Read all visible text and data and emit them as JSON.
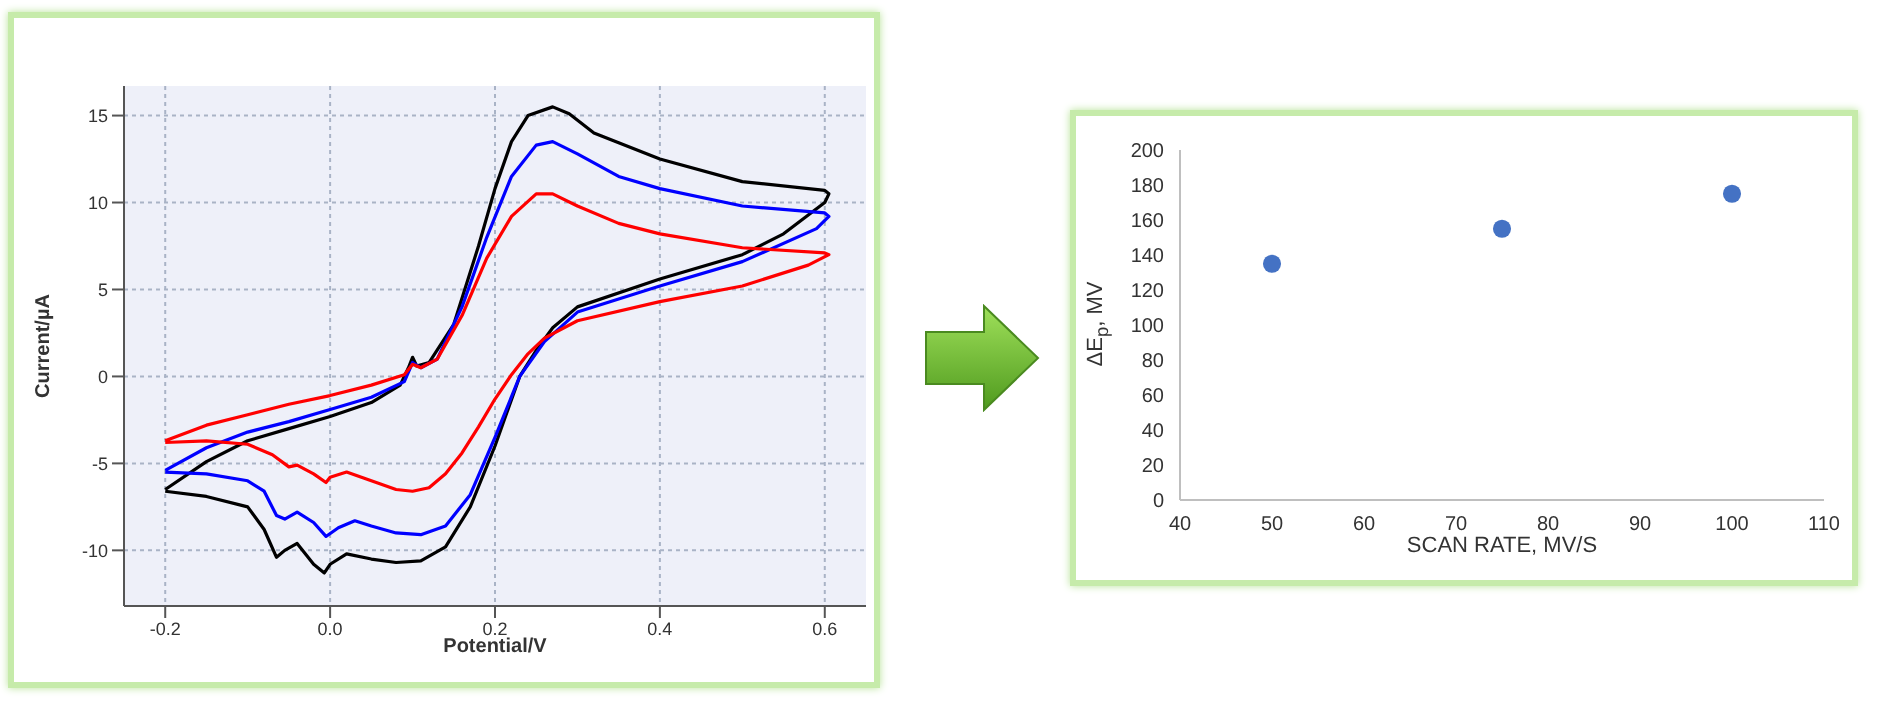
{
  "chart_data": [
    {
      "type": "line",
      "xlabel": "Potential/V",
      "ylabel": "Current/µA",
      "xlim": [
        -0.25,
        0.65
      ],
      "ylim": [
        -13.2,
        16.7
      ],
      "xticks": [
        -0.2,
        {
          "value": 0,
          "label": "0.0"
        },
        0.2,
        0.4,
        0.6
      ],
      "yticks": [
        -10,
        -5,
        0,
        5,
        10,
        15
      ],
      "grid": true,
      "marker": "none",
      "line_style": "solid",
      "series": [
        {
          "color": "#000000",
          "x": [
            -0.2,
            -0.15,
            -0.1,
            -0.05,
            0,
            0.05,
            0.085,
            0.095,
            0.1,
            0.105,
            0.12,
            0.15,
            0.18,
            0.2,
            0.22,
            0.24,
            0.27,
            0.29,
            0.32,
            0.4,
            0.5,
            0.6,
            0.605,
            0.6,
            0.55,
            0.5,
            0.4,
            0.3,
            0.27,
            0.25,
            0.23,
            0.2,
            0.17,
            0.14,
            0.11,
            0.08,
            0.05,
            0.02,
            0,
            -0.007,
            -0.02,
            -0.04,
            -0.055,
            -0.065,
            -0.08,
            -0.1,
            -0.15,
            -0.2
          ],
          "values": [
            -6.5,
            -4.9,
            -3.7,
            -3,
            -2.3,
            -1.5,
            -0.5,
            0.5,
            1.1,
            0.6,
            0.8,
            3,
            7.5,
            10.8,
            13.5,
            15,
            15.5,
            15.1,
            14,
            12.5,
            11.2,
            10.7,
            10.5,
            10,
            8.2,
            7,
            5.6,
            4,
            2.8,
            1.5,
            0,
            -4,
            -7.5,
            -9.8,
            -10.6,
            -10.7,
            -10.5,
            -10.2,
            -10.8,
            -11.3,
            -10.8,
            -9.6,
            -10,
            -10.4,
            -8.8,
            -7.5,
            -6.9,
            -6.6
          ]
        },
        {
          "color": "#0000ff",
          "x": [
            -0.2,
            -0.15,
            -0.1,
            -0.05,
            0,
            0.05,
            0.09,
            0.1,
            0.11,
            0.13,
            0.16,
            0.19,
            0.22,
            0.25,
            0.27,
            0.3,
            0.35,
            0.4,
            0.5,
            0.6,
            0.605,
            0.59,
            0.5,
            0.4,
            0.3,
            0.26,
            0.23,
            0.2,
            0.17,
            0.14,
            0.11,
            0.08,
            0.05,
            0.03,
            0.01,
            -0.005,
            -0.02,
            -0.04,
            -0.055,
            -0.065,
            -0.08,
            -0.1,
            -0.15,
            -0.2
          ],
          "values": [
            -5.4,
            -4.1,
            -3.2,
            -2.6,
            -1.9,
            -1.2,
            -0.3,
            0.8,
            0.5,
            1,
            4,
            8,
            11.5,
            13.3,
            13.5,
            12.8,
            11.5,
            10.8,
            9.8,
            9.4,
            9.2,
            8.5,
            6.6,
            5.2,
            3.7,
            2,
            0,
            -3.5,
            -6.8,
            -8.6,
            -9.1,
            -9,
            -8.6,
            -8.3,
            -8.7,
            -9.2,
            -8.4,
            -7.8,
            -8.2,
            -8,
            -6.6,
            -6,
            -5.6,
            -5.5
          ]
        },
        {
          "color": "#ff0000",
          "x": [
            -0.2,
            -0.15,
            -0.1,
            -0.05,
            0,
            0.05,
            0.09,
            0.1,
            0.11,
            0.13,
            0.16,
            0.19,
            0.22,
            0.25,
            0.27,
            0.3,
            0.35,
            0.4,
            0.5,
            0.6,
            0.605,
            0.58,
            0.5,
            0.4,
            0.3,
            0.26,
            0.24,
            0.22,
            0.2,
            0.18,
            0.16,
            0.14,
            0.12,
            0.1,
            0.08,
            0.05,
            0.02,
            0,
            -0.005,
            -0.02,
            -0.04,
            -0.05,
            -0.07,
            -0.1,
            -0.15,
            -0.2
          ],
          "values": [
            -3.7,
            -2.8,
            -2.2,
            -1.6,
            -1.1,
            -0.5,
            0.1,
            0.7,
            0.5,
            1,
            3.5,
            6.8,
            9.2,
            10.5,
            10.5,
            9.8,
            8.8,
            8.2,
            7.4,
            7.1,
            7,
            6.4,
            5.2,
            4.3,
            3.2,
            2.2,
            1.3,
            0.1,
            -1.3,
            -2.9,
            -4.4,
            -5.6,
            -6.4,
            -6.6,
            -6.5,
            -6,
            -5.5,
            -5.8,
            -6.1,
            -5.6,
            -5.1,
            -5.2,
            -4.5,
            -3.9,
            -3.7,
            -3.8
          ]
        }
      ]
    },
    {
      "type": "scatter",
      "xlabel": "SCAN RATE, MV/S",
      "ylabel": "ΔE$_{p}$, MV",
      "xlim": [
        40,
        110
      ],
      "ylim": [
        0,
        200
      ],
      "xticks": [
        40,
        50,
        60,
        70,
        80,
        90,
        100,
        110
      ],
      "yticks": [
        0,
        20,
        40,
        60,
        80,
        100,
        120,
        140,
        160,
        180,
        200
      ],
      "grid": false,
      "marker": "circle",
      "series": [
        {
          "color": "#4472c4",
          "x": [
            50,
            75,
            100
          ],
          "values": [
            135,
            155,
            175
          ]
        }
      ]
    }
  ]
}
